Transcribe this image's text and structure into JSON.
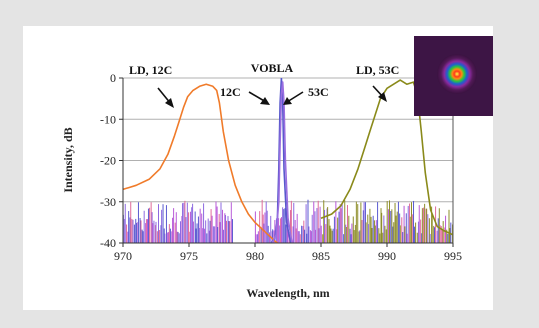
{
  "chart_data": {
    "type": "line",
    "title": "",
    "xlabel": "Wavelength, nm",
    "ylabel": "Intensity, dB",
    "xlim": [
      970,
      995
    ],
    "ylim": [
      -40,
      0
    ],
    "xticks": [
      970,
      975,
      980,
      985,
      990,
      995
    ],
    "yticks": [
      0,
      -10,
      -20,
      -30,
      -40
    ],
    "grid": "horizontal",
    "legend": "none",
    "series": [
      {
        "name": "LD, 12C",
        "color": "#f07b2a",
        "x": [
          970.0,
          971.0,
          972.0,
          972.8,
          973.4,
          973.9,
          974.3,
          974.6,
          974.9,
          975.3,
          975.8,
          976.3,
          976.8,
          977.1,
          977.3,
          977.6,
          978.0,
          978.5,
          979.0,
          979.5,
          980.0,
          980.5,
          981.0,
          981.5,
          981.7
        ],
        "y": [
          -27,
          -26,
          -24.5,
          -22,
          -18.5,
          -14,
          -10,
          -7,
          -4.5,
          -3,
          -2,
          -1.5,
          -2,
          -3,
          -6,
          -13,
          -20,
          -26,
          -30,
          -33,
          -35,
          -36.5,
          -38,
          -39.5,
          -40
        ]
      },
      {
        "name": "VOBLA 12C",
        "color": "#5858cc",
        "x": [
          981.2,
          981.5,
          981.7,
          981.8,
          981.9,
          982.0,
          982.1,
          982.2,
          982.4,
          982.7
        ],
        "y": [
          -40,
          -39,
          -34,
          -22,
          -6,
          0,
          -6,
          -22,
          -35,
          -40
        ]
      },
      {
        "name": "VOBLA 53C",
        "color": "#9a6ee0",
        "x": [
          981.3,
          981.6,
          981.8,
          981.9,
          982.0,
          982.1,
          982.2,
          982.3,
          982.5,
          982.8
        ],
        "y": [
          -40,
          -38,
          -30,
          -16,
          -4,
          -1,
          -6,
          -20,
          -34,
          -40
        ]
      },
      {
        "name": "LD, 53C",
        "color": "#8a8a1a",
        "x": [
          985.0,
          985.8,
          986.5,
          987.2,
          987.8,
          988.3,
          988.7,
          989.1,
          989.5,
          990.0,
          990.5,
          991.0,
          991.5,
          992.0,
          992.3,
          992.6,
          992.9,
          993.3,
          993.8,
          994.3,
          995.0
        ],
        "y": [
          -34,
          -33,
          -31,
          -27,
          -22,
          -17,
          -13,
          -9,
          -5,
          -2.5,
          -1.5,
          -0.5,
          -1.5,
          -1,
          -4,
          -13,
          -23,
          -32,
          -36,
          -37,
          -38
        ]
      }
    ],
    "noise_floor": {
      "from": -40,
      "to": -29.5,
      "colors": [
        "#5a5ad0",
        "#b85ad8",
        "#8e6ae0",
        "#e06a9a",
        "#8e8e2a"
      ]
    },
    "annotations": [
      "LD, 12C",
      "VOBLA",
      "12C",
      "53C",
      "LD, 53C"
    ]
  }
}
